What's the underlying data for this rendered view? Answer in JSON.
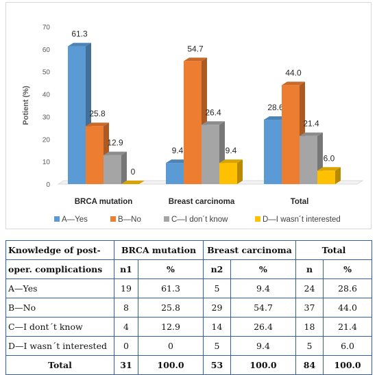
{
  "chart_data": {
    "type": "bar",
    "categories": [
      "BRCA mutation",
      "Breast carcinoma",
      "Total"
    ],
    "series": [
      {
        "name": "A—Yes",
        "values": [
          61.3,
          9.4,
          28.6
        ]
      },
      {
        "name": "B—No",
        "values": [
          25.8,
          54.7,
          44.0
        ]
      },
      {
        "name": "C—I don´t know",
        "values": [
          12.9,
          26.4,
          21.4
        ]
      },
      {
        "name": "D—I wasn´t interested",
        "values": [
          0,
          9.4,
          6.0
        ]
      }
    ],
    "data_labels": [
      [
        "61.3",
        "9.4",
        "28.6"
      ],
      [
        "25.8",
        "54.7",
        "44.0"
      ],
      [
        "12.9",
        "26.4",
        "21.4"
      ],
      [
        "0",
        "9.4",
        "6.0"
      ]
    ],
    "ylabel": "Potient (%)",
    "ylim": [
      0,
      70
    ],
    "yticks": [
      0,
      10,
      20,
      30,
      40,
      50,
      60,
      70
    ],
    "legend_position": "bottom",
    "grid": false,
    "colors": [
      "#5b9bd5",
      "#ed7d31",
      "#a5a5a5",
      "#ffc000"
    ],
    "style": "3d-bar"
  },
  "table": {
    "head1": [
      "Knowledge of post-",
      "BRCA mutation",
      "Breast carcinoma",
      "Total"
    ],
    "head2": [
      "oper. complications",
      "n1",
      "%",
      "n2",
      "%",
      "n",
      "%"
    ],
    "rows": [
      [
        "A—Yes",
        "19",
        "61.3",
        "5",
        "9.4",
        "24",
        "28.6"
      ],
      [
        "B—No",
        "8",
        "25.8",
        "29",
        "54.7",
        "37",
        "44.0"
      ],
      [
        "C—I dont´t know",
        "4",
        "12.9",
        "14",
        "26.4",
        "18",
        "21.4"
      ],
      [
        "D—I wasn´t interested",
        "0",
        "0",
        "5",
        "9.4",
        "5",
        "6.0"
      ]
    ],
    "total": [
      "Total",
      "31",
      "100.0",
      "53",
      "100.0",
      "84",
      "100.0"
    ]
  }
}
